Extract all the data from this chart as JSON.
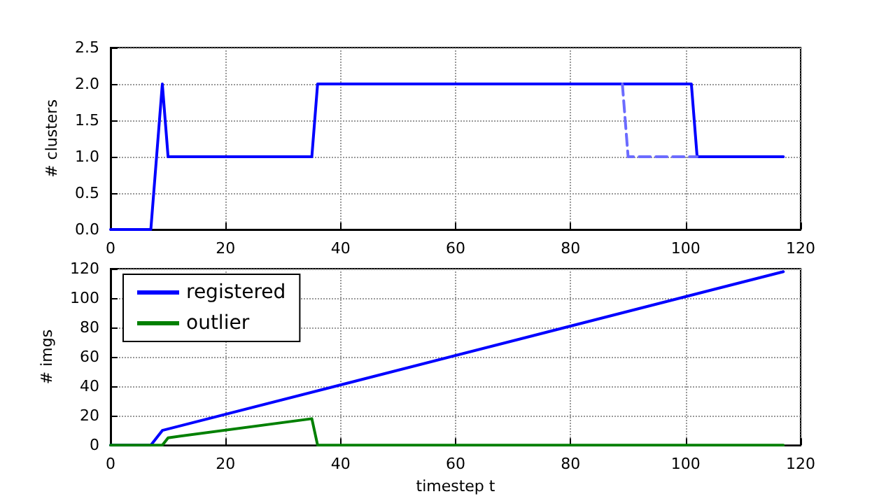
{
  "chart_data": [
    {
      "type": "line",
      "ylabel": "# clusters",
      "xlim": [
        0,
        120
      ],
      "xticks": [
        0,
        20,
        40,
        60,
        80,
        100,
        120
      ],
      "ylim": [
        0,
        2.5
      ],
      "yticks": [
        {
          "value": 0,
          "label": "0.0"
        },
        0.5,
        {
          "value": 1,
          "label": "1.0"
        },
        1.5,
        {
          "value": 2,
          "label": "2.0"
        },
        2.5
      ],
      "grid": true,
      "marker": "none",
      "series": [
        {
          "color": "#0000ff",
          "line_style": "solid",
          "x": [
            0,
            7,
            9,
            10,
            35,
            36,
            101,
            102,
            117
          ],
          "values": [
            0,
            0,
            2,
            1,
            1,
            2,
            2,
            1,
            1
          ]
        },
        {
          "color": "#6b6bff",
          "line_style": "dashed",
          "x": [
            89,
            90,
            102
          ],
          "values": [
            2,
            1,
            1
          ]
        }
      ]
    },
    {
      "type": "line",
      "ylabel": "# imgs",
      "xlabel": "timestep t",
      "xlim": [
        0,
        120
      ],
      "xticks": [
        0,
        20,
        40,
        60,
        80,
        100,
        120
      ],
      "ylim": [
        0,
        120
      ],
      "yticks": [
        0,
        20,
        40,
        60,
        80,
        100,
        120
      ],
      "grid": true,
      "marker": "none",
      "legend": "top left",
      "series": [
        {
          "name": "registered",
          "color": "#0000ff",
          "line_style": "solid",
          "x": [
            0,
            7,
            9,
            117
          ],
          "values": [
            0,
            0,
            10,
            118
          ]
        },
        {
          "name": "outlier",
          "color": "#008000",
          "line_style": "solid",
          "x": [
            0,
            9,
            10,
            35,
            36,
            117
          ],
          "values": [
            0,
            0,
            5,
            18,
            0,
            0
          ]
        }
      ]
    }
  ]
}
